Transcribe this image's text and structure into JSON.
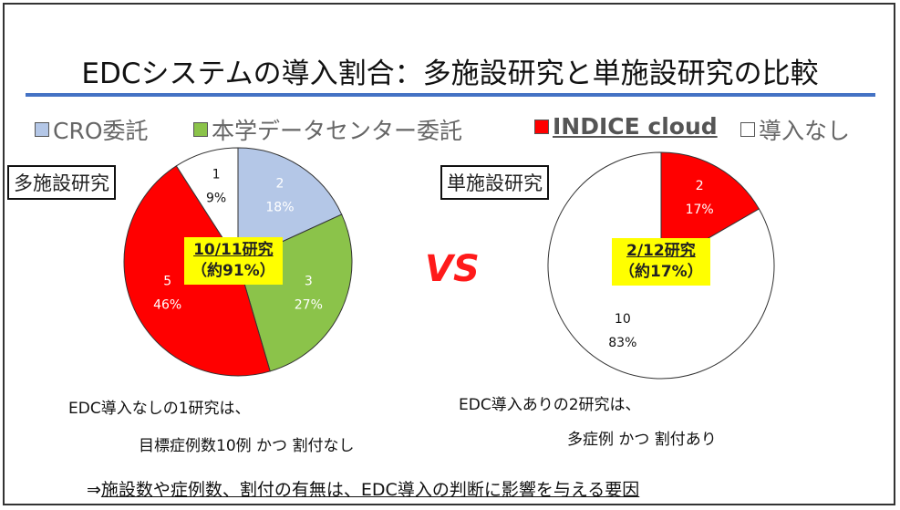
{
  "title": "EDCシステムの導入割合：多施設研究と単施設研究の比較",
  "legend": [
    {
      "label": "CRO委託",
      "color": "#b4c7e7"
    },
    {
      "label": "本学データセンター委託",
      "color": "#8bc34a"
    },
    {
      "label": "INDICE cloud",
      "color": "#ff0000"
    },
    {
      "label": "導入なし",
      "color": "#ffffff"
    }
  ],
  "chart_data": [
    {
      "type": "pie",
      "title": "多施設研究",
      "categories": [
        "CRO委託",
        "本学データセンター委託",
        "INDICE cloud",
        "導入なし"
      ],
      "values": [
        2,
        3,
        5,
        1
      ],
      "percent_labels": [
        "18%",
        "27%",
        "46%",
        "9%"
      ],
      "colors": [
        "#b4c7e7",
        "#8bc34a",
        "#ff0000",
        "#ffffff"
      ],
      "label_colors": [
        "#fff",
        "#fff",
        "#fff",
        "#111"
      ],
      "callout": {
        "line1": "10/11研究",
        "line2": "（約91%）"
      }
    },
    {
      "type": "pie",
      "title": "単施設研究",
      "categories": [
        "INDICE cloud",
        "導入なし"
      ],
      "values": [
        2,
        10
      ],
      "percent_labels": [
        "17%",
        "83%"
      ],
      "colors": [
        "#ff0000",
        "#ffffff"
      ],
      "label_colors": [
        "#fff",
        "#111"
      ],
      "callout": {
        "line1": "2/12研究",
        "line2": "（約17%）"
      }
    }
  ],
  "vs": "VS",
  "notes": {
    "left1": "EDC導入なしの1研究は、",
    "left2": "目標症例数10例 かつ 割付なし",
    "right1": "EDC導入ありの2研究は、",
    "right2": "多症例 かつ 割付あり",
    "conclusion_arrow": "⇒",
    "conclusion": "施設数や症例数、割付の有無は、EDC導入の判断に影響を与える要因"
  }
}
